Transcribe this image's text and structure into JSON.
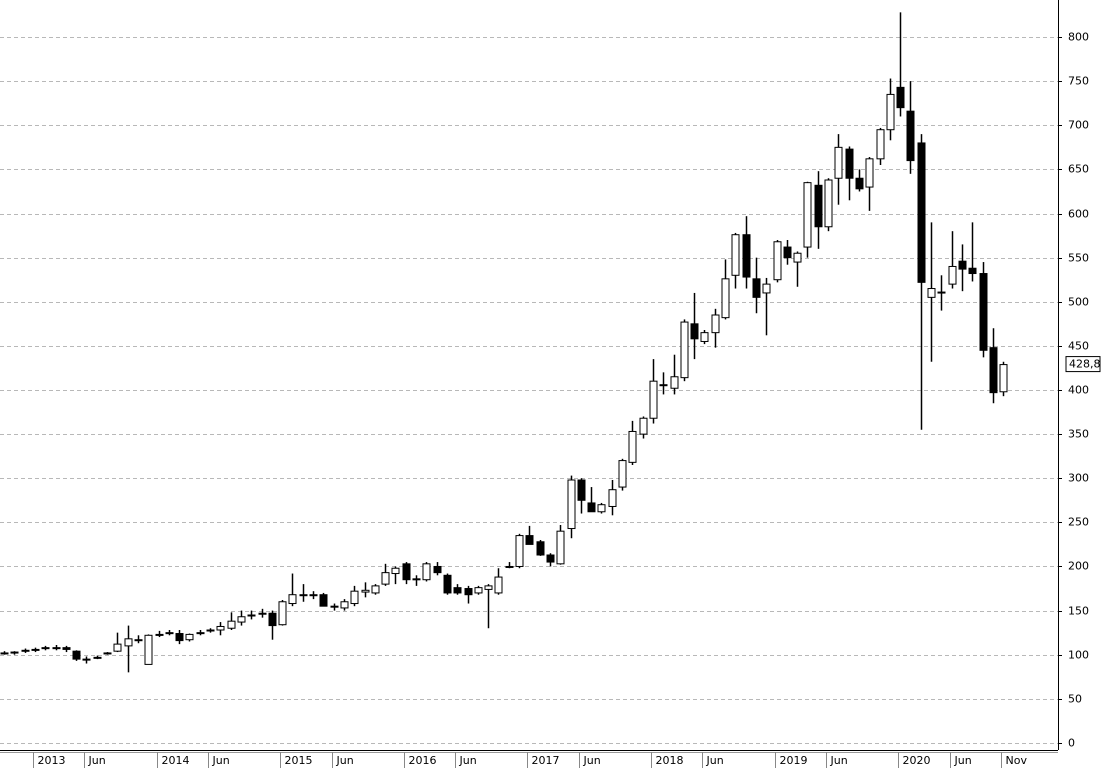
{
  "chart_data": {
    "type": "candlestick",
    "categories": [
      null,
      null,
      null,
      "2013",
      null,
      null,
      null,
      null,
      "Jun",
      null,
      null,
      null,
      null,
      null,
      null,
      "2014",
      null,
      null,
      null,
      null,
      "Jun",
      null,
      null,
      null,
      null,
      null,
      null,
      "2015",
      null,
      null,
      null,
      null,
      "Jun",
      null,
      null,
      null,
      null,
      null,
      null,
      "2016",
      null,
      null,
      null,
      null,
      "Jun",
      null,
      null,
      null,
      null,
      null,
      null,
      "2017",
      null,
      null,
      null,
      null,
      "Jun",
      null,
      null,
      null,
      null,
      null,
      null,
      "2018",
      null,
      null,
      null,
      null,
      "Jun",
      null,
      null,
      null,
      null,
      null,
      null,
      "2019",
      null,
      null,
      null,
      null,
      "Jun",
      null,
      null,
      null,
      null,
      null,
      null,
      "2020",
      null,
      null,
      null,
      null,
      "Jun",
      null,
      null,
      null,
      null,
      "Nov"
    ],
    "open": [
      102,
      102,
      104,
      105,
      107,
      108,
      108,
      104,
      95,
      96,
      101,
      104,
      110,
      117,
      89,
      122,
      124,
      124,
      117,
      124,
      127,
      128,
      130,
      137,
      144,
      146,
      147,
      134,
      158,
      168,
      168,
      168,
      155,
      153,
      158,
      171,
      170,
      180,
      192,
      203,
      186,
      185,
      200,
      190,
      176,
      175,
      170,
      174,
      170,
      199,
      200,
      235,
      228,
      213,
      203,
      243,
      298,
      272,
      262,
      268,
      290,
      318,
      350,
      368,
      405,
      402,
      414,
      475,
      455,
      465,
      482,
      530,
      576,
      526,
      510,
      525,
      562,
      545,
      562,
      632,
      585,
      640,
      673,
      640,
      630,
      662,
      695,
      743,
      716,
      680,
      505,
      510,
      520,
      546,
      538,
      532,
      448,
      398
    ],
    "high": [
      104,
      104,
      107,
      108,
      110,
      111,
      110,
      105,
      98,
      99,
      103,
      125,
      133,
      122,
      123,
      127,
      128,
      128,
      124,
      128,
      130,
      137,
      148,
      150,
      150,
      152,
      150,
      162,
      192,
      180,
      172,
      170,
      158,
      163,
      178,
      182,
      180,
      203,
      200,
      205,
      190,
      205,
      205,
      192,
      180,
      178,
      178,
      180,
      198,
      205,
      237,
      246,
      230,
      215,
      247,
      303,
      300,
      290,
      272,
      298,
      322,
      365,
      370,
      435,
      420,
      440,
      480,
      510,
      468,
      492,
      548,
      578,
      597,
      550,
      527,
      570,
      570,
      557,
      636,
      648,
      640,
      690,
      676,
      650,
      664,
      697,
      753,
      828,
      750,
      690,
      590,
      530,
      580,
      565,
      590,
      545,
      470,
      432
    ],
    "low": [
      100,
      100,
      102,
      103,
      105,
      105,
      103,
      93,
      90,
      95,
      100,
      103,
      80,
      113,
      89,
      120,
      122,
      112,
      115,
      122,
      125,
      122,
      128,
      133,
      140,
      142,
      117,
      133,
      155,
      160,
      163,
      155,
      150,
      150,
      155,
      165,
      168,
      178,
      180,
      180,
      178,
      183,
      190,
      168,
      168,
      158,
      168,
      130,
      168,
      198,
      198,
      225,
      212,
      200,
      202,
      232,
      260,
      262,
      260,
      258,
      286,
      315,
      345,
      362,
      395,
      395,
      410,
      435,
      452,
      448,
      480,
      515,
      515,
      487,
      462,
      522,
      542,
      517,
      550,
      560,
      580,
      610,
      615,
      625,
      603,
      655,
      683,
      710,
      645,
      355,
      432,
      490,
      515,
      512,
      523,
      437,
      385,
      393
    ],
    "close": [
      102,
      103,
      105,
      106,
      108,
      108,
      106,
      95,
      94,
      97,
      102,
      112,
      118,
      117,
      122,
      123,
      125,
      116,
      123,
      125,
      128,
      132,
      138,
      143,
      145,
      147,
      133,
      160,
      168,
      168,
      167,
      155,
      154,
      160,
      172,
      173,
      178,
      193,
      198,
      185,
      185,
      203,
      193,
      170,
      170,
      168,
      176,
      178,
      188,
      200,
      235,
      225,
      213,
      205,
      240,
      298,
      275,
      262,
      270,
      287,
      320,
      353,
      368,
      410,
      406,
      415,
      477,
      458,
      465,
      485,
      526,
      576,
      528,
      505,
      520,
      568,
      550,
      555,
      635,
      585,
      638,
      675,
      640,
      628,
      662,
      695,
      735,
      720,
      660,
      522,
      515,
      511,
      540,
      537,
      532,
      445,
      397,
      428.8
    ],
    "up_color": "#ffffff",
    "down_color": "#000000",
    "edge_color": "#000000",
    "last_label": {
      "value": 428.8,
      "label": "428,8"
    },
    "ylim": [
      -8,
      842
    ],
    "yticks": [
      0,
      50,
      100,
      150,
      200,
      250,
      300,
      350,
      400,
      450,
      500,
      550,
      600,
      650,
      700,
      750,
      800
    ],
    "grid": true
  }
}
